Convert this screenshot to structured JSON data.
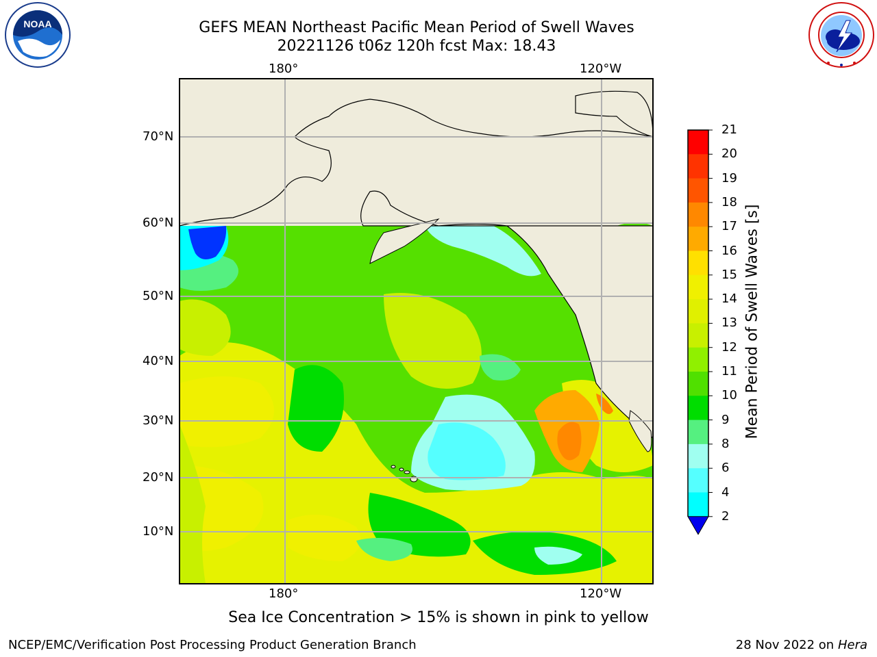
{
  "title": {
    "line1": "GEFS MEAN Northeast Pacific Mean Period of Swell Waves",
    "line2": "20221126 t06z 120h fcst   Max: 18.43"
  },
  "map": {
    "lon_labels": [
      "180°",
      "120°W"
    ],
    "lat_labels": [
      "70°N",
      "60°N",
      "50°N",
      "40°N",
      "30°N",
      "20°N",
      "10°N"
    ],
    "land_color": "#efecdc",
    "grid_color": "#b0b0b0"
  },
  "colorbar": {
    "label": "Mean Period of Swell Waves [s]",
    "ticks": [
      "21",
      "20",
      "19",
      "18",
      "17",
      "16",
      "15",
      "14",
      "13",
      "12",
      "11",
      "10",
      "9",
      "8",
      "6",
      "4",
      "2"
    ],
    "colors": [
      "#ff0000",
      "#ff3300",
      "#ff5500",
      "#ff8800",
      "#ffaa00",
      "#ffe000",
      "#f0f000",
      "#e0f000",
      "#c8f000",
      "#90f000",
      "#50e000",
      "#00dd00",
      "#55f080",
      "#a0fff0",
      "#55ffff",
      "#00ffff",
      "#00ccff",
      "#0088ff",
      "#0000ff"
    ],
    "min_arrow_color": "#0000ee"
  },
  "logos": {
    "noaa_text": "NOAA",
    "noaa_ring_text": "NATIONAL OCEANIC AND ATMOSPHERIC ADMINISTRATION · U.S. DEPARTMENT OF COMMERCE",
    "nws_ring_text": "NATIONAL WEATHER SERVICE"
  },
  "footer": {
    "note": "Sea Ice Concentration > 15% is shown in pink to yellow",
    "credit_left": "NCEP/EMC/Verification Post Processing Product Generation Branch",
    "date": "28 Nov 2022 on",
    "machine": "Hera"
  }
}
